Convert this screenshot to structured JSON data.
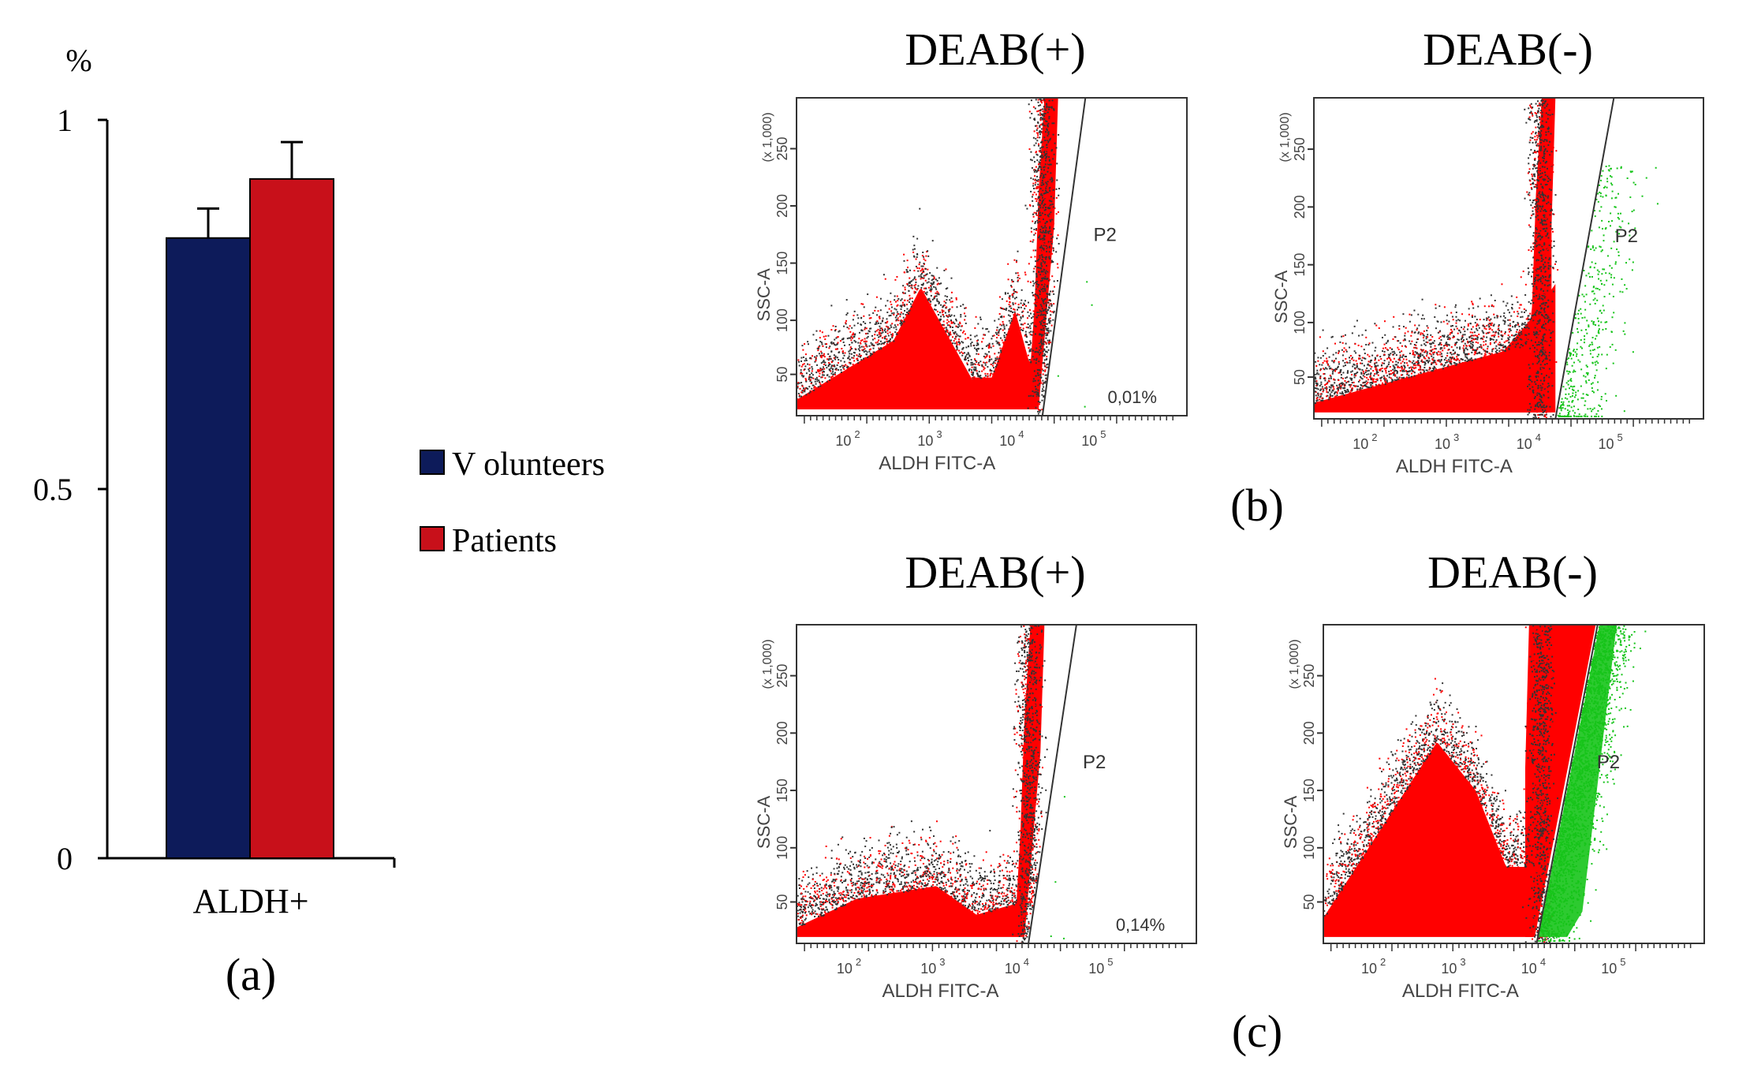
{
  "chart_data": [
    {
      "type": "bar",
      "panel_label": "(a)",
      "unit_label": "%",
      "categories": [
        "ALDH+"
      ],
      "series": [
        {
          "name": "V olunteers",
          "values": [
            0.84
          ],
          "error": [
            0.04
          ],
          "color": "#0d1b5a"
        },
        {
          "name": "Patients",
          "values": [
            0.92
          ],
          "error": [
            0.05
          ],
          "color": "#c8101a"
        }
      ],
      "yticks": [
        "0",
        "0.5",
        "1"
      ],
      "ylim": [
        0,
        1
      ],
      "legend_position": "right"
    },
    {
      "type": "scatter",
      "panel_label": "(b)",
      "plots": [
        {
          "title": "DEAB(+)",
          "gate": "P2",
          "gate_percent": "0,01%",
          "xlabel": "ALDH FITC-A",
          "ylabel": "SSC-A",
          "yunit": "(x 1,000)"
        },
        {
          "title": "DEAB(-)",
          "gate": "P2",
          "gate_percent": "",
          "xlabel": "ALDH FITC-A",
          "ylabel": "SSC-A",
          "yunit": "(x 1,000)"
        }
      ],
      "yticks": [
        "50",
        "100",
        "150",
        "200",
        "250"
      ],
      "xticks": [
        "10",
        "10",
        "10",
        "10"
      ],
      "xtick_exponents": [
        "2",
        "3",
        "4",
        "5"
      ],
      "colors": {
        "main": "#ff0000",
        "gated": "#16c41a",
        "sparse": "#333333"
      }
    },
    {
      "type": "scatter",
      "panel_label": "(c)",
      "plots": [
        {
          "title": "DEAB(+)",
          "gate": "P2",
          "gate_percent": "0,14%",
          "xlabel": "ALDH FITC-A",
          "ylabel": "SSC-A",
          "yunit": "(x 1,000)"
        },
        {
          "title": "DEAB(-)",
          "gate": "P2",
          "gate_percent": "",
          "xlabel": "ALDH FITC-A",
          "ylabel": "SSC-A",
          "yunit": "(x 1,000)"
        }
      ],
      "yticks": [
        "50",
        "100",
        "150",
        "200",
        "250"
      ],
      "xticks": [
        "10",
        "10",
        "10",
        "10"
      ],
      "xtick_exponents": [
        "2",
        "3",
        "4",
        "5"
      ],
      "colors": {
        "main": "#ff0000",
        "gated": "#16c41a",
        "sparse": "#333333"
      }
    }
  ]
}
